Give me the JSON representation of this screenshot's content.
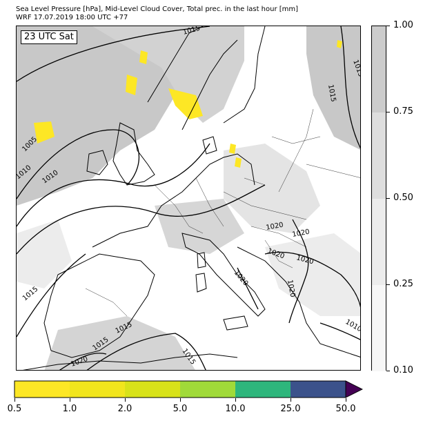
{
  "title": {
    "line1": "Sea Level Pressure [hPa], Mid-Level Cloud Cover, Total prec. in the last hour [mm]",
    "line2": "WRF 17.07.2019 18:00 UTC +77"
  },
  "time_label": "23 UTC Sat",
  "cloud_colorbar": {
    "ticks": [
      "1.00",
      "0.75",
      "0.50",
      "0.25",
      "0.10"
    ],
    "levels": [
      0.1,
      0.25,
      0.5,
      0.75,
      1.0
    ],
    "colors": [
      "#f7f7f7",
      "#ececec",
      "#dedede",
      "#cccccc"
    ]
  },
  "precip_colorbar": {
    "ticks": [
      "0.5",
      "1.0",
      "2.0",
      "5.0",
      "10.0",
      "25.0",
      "50.0"
    ],
    "colors": [
      "#fde725",
      "#f1e51d",
      "#d8e219",
      "#a0da39",
      "#2eb67c",
      "#3b528b",
      "#440154"
    ]
  },
  "isobar_labels": [
    "1015",
    "1015",
    "1015",
    "1010",
    "1005",
    "1010",
    "1015",
    "1020",
    "1020",
    "1020",
    "1020",
    "1020",
    "1020",
    "1015",
    "1015",
    "1020",
    "1015",
    "1010"
  ],
  "colors": {
    "land_line": "#000000",
    "isobar": "#000000",
    "cloud_dark": "#c8c8c8",
    "cloud_light": "#e4e4e4",
    "precip": "#fde725"
  }
}
